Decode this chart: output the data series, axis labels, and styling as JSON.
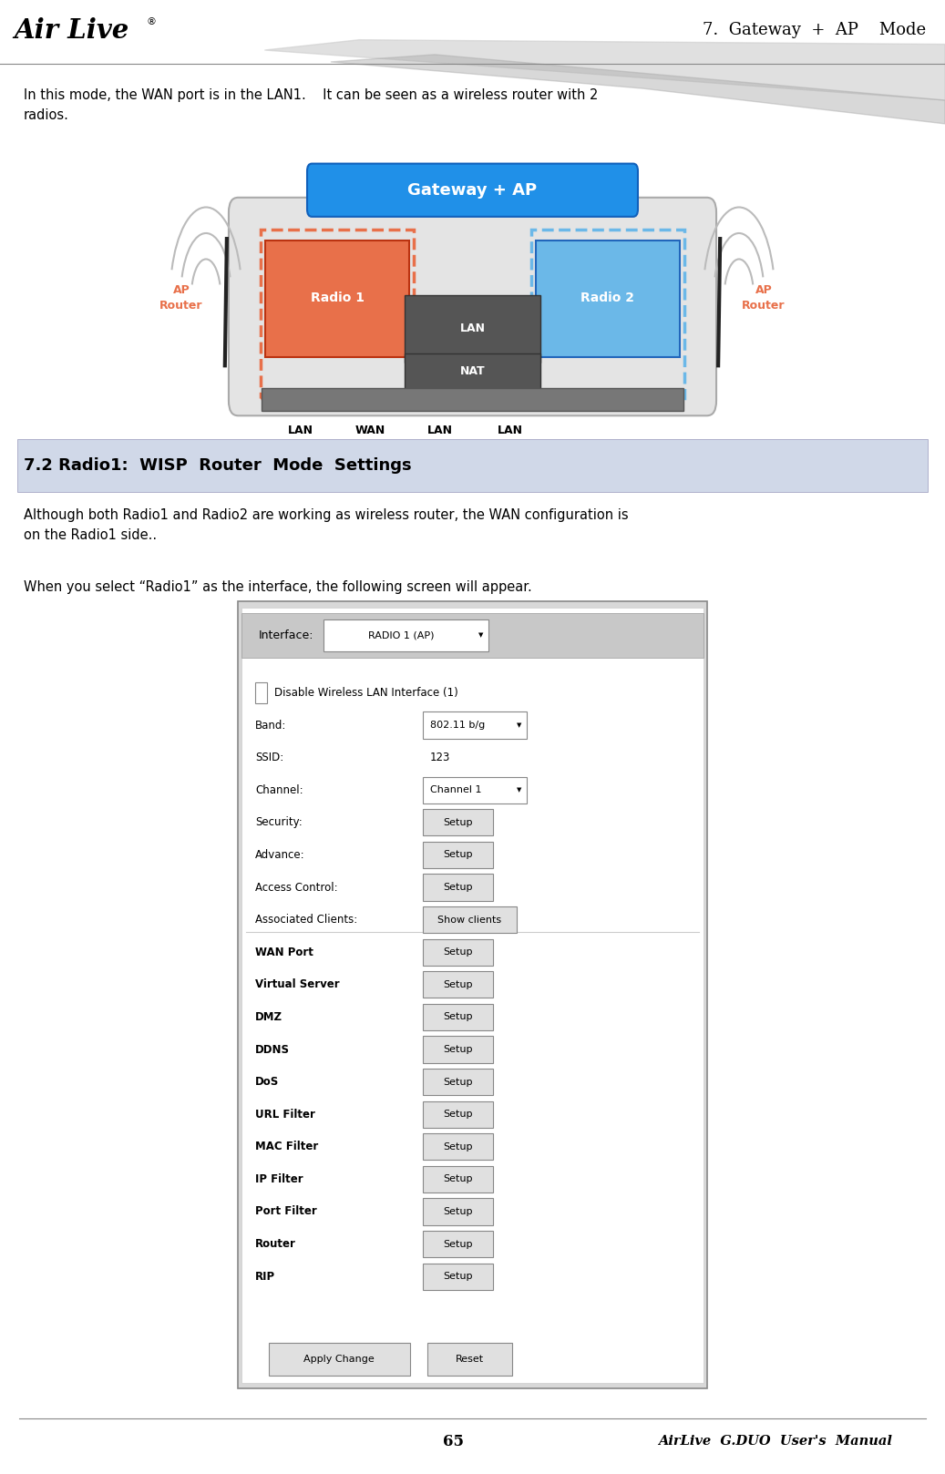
{
  "page_width": 10.37,
  "page_height": 16.18,
  "bg_color": "#ffffff",
  "header_text": "7.  Gateway  +  AP    Mode",
  "header_font_size": 13,
  "footer_page": "65",
  "footer_manual": "AirLive  G.DUO  User's  Manual",
  "body_text1": "In this mode, the WAN port is in the LAN1.    It can be seen as a wireless router with 2\nradios.",
  "section_title": "7.2 Radio1:  WISP  Router  Mode  Settings",
  "body_text2": "Although both Radio1 and Radio2 are working as wireless router, the WAN configuration is\non the Radio1 side..",
  "body_text3": "When you select “Radio1” as the interface, the following screen will appear.",
  "gateway_label": "Gateway + AP",
  "radio1_label": "Radio 1",
  "radio2_label": "Radio 2",
  "lan_label": "LAN",
  "nat_label": "NAT",
  "ap_router_left": "AP\nRouter",
  "ap_router_right": "AP\nRouter",
  "port_labels": [
    "LAN",
    "WAN",
    "LAN",
    "LAN"
  ],
  "orange_color": "#E8704A",
  "blue_color": "#6BB8E8",
  "dark_gray": "#555555",
  "interface_label": "Interface:",
  "interface_value": "RADIO 1 (AP)",
  "form_items": [
    {
      "label": "Disable Wireless LAN Interface (1)",
      "type": "checkbox"
    },
    {
      "label": "Band:",
      "value": "802.11 b/g",
      "type": "dropdown"
    },
    {
      "label": "SSID:",
      "value": "123",
      "type": "text_val"
    },
    {
      "label": "Channel:",
      "value": "Channel 1",
      "type": "dropdown"
    },
    {
      "label": "Security:",
      "value": "Setup",
      "type": "button"
    },
    {
      "label": "Advance:",
      "value": "Setup",
      "type": "button"
    },
    {
      "label": "Access Control:",
      "value": "Setup",
      "type": "button"
    },
    {
      "label": "Associated Clients:",
      "value": "Show clients",
      "type": "button_wide"
    },
    {
      "label": "WAN Port",
      "value": "Setup",
      "type": "button",
      "bold": true
    },
    {
      "label": "Virtual Server",
      "value": "Setup",
      "type": "button",
      "bold": true
    },
    {
      "label": "DMZ",
      "value": "Setup",
      "type": "button",
      "bold": true
    },
    {
      "label": "DDNS",
      "value": "Setup",
      "type": "button",
      "bold": true
    },
    {
      "label": "DoS",
      "value": "Setup",
      "type": "button",
      "bold": true
    },
    {
      "label": "URL Filter",
      "value": "Setup",
      "type": "button",
      "bold": true
    },
    {
      "label": "MAC Filter",
      "value": "Setup",
      "type": "button",
      "bold": true
    },
    {
      "label": "IP Filter",
      "value": "Setup",
      "type": "button",
      "bold": true
    },
    {
      "label": "Port Filter",
      "value": "Setup",
      "type": "button",
      "bold": true
    },
    {
      "label": "Router",
      "value": "Setup",
      "type": "button",
      "bold": true
    },
    {
      "label": "RIP",
      "value": "Setup",
      "type": "button",
      "bold": true
    }
  ],
  "apply_button": "Apply Change",
  "reset_button": "Reset"
}
